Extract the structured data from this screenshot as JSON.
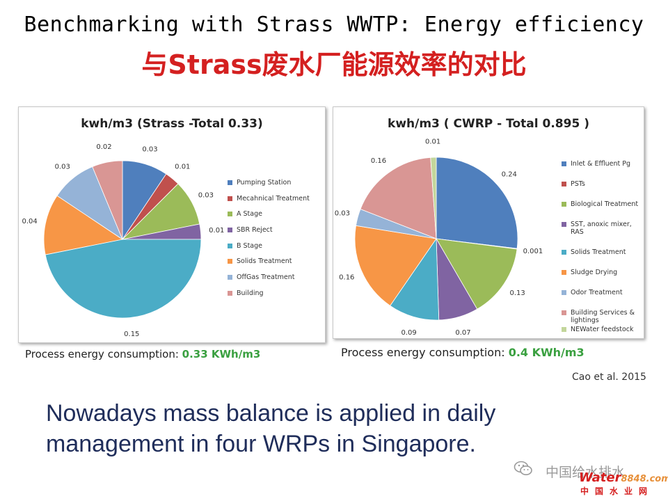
{
  "slide": {
    "title_en": "Benchmarking with Strass WWTP: Energy efficiency",
    "title_cn": "与Strass废水厂能源效率的对比",
    "notes": {
      "left_label": "Process energy consumption: ",
      "left_value": "0.33 KWh/m3",
      "right_label": "Process energy consumption: ",
      "right_value": "0.4 KWh/m3"
    },
    "citation": "Cao et al. 2015",
    "statement_line1": "Nowadays mass balance is applied in daily",
    "statement_line2": "management in four WRPs in Singapore.",
    "watermark": {
      "account": "中国给水排水",
      "logo_text": "Water",
      "logo_num": "8848",
      "logo_domain": ".com",
      "site": "中国水业网"
    },
    "colors": {
      "title_cn": "#d42020",
      "note_value": "#3aa040",
      "statement": "#1f2d5a"
    }
  },
  "chart_data": [
    {
      "type": "pie",
      "title": "kwh/m3 (Strass -Total 0.33)",
      "legend_position": "right",
      "slices": [
        {
          "label": "Pumping Station",
          "value": 0.03,
          "display": "0.03",
          "color": "#4f7fbd"
        },
        {
          "label": "Mecahnical Treatment",
          "value": 0.01,
          "display": "0.01",
          "color": "#c0504d"
        },
        {
          "label": "A Stage",
          "value": 0.03,
          "display": "0.03",
          "color": "#9bbb59"
        },
        {
          "label": "SBR Reject",
          "value": 0.01,
          "display": "0.01",
          "color": "#8064a2"
        },
        {
          "label": "B Stage",
          "value": 0.15,
          "display": "0.15",
          "color": "#4bacc6"
        },
        {
          "label": "Solids Treatment",
          "value": 0.04,
          "display": "0.04",
          "color": "#f79646"
        },
        {
          "label": "OffGas Treatment",
          "value": 0.03,
          "display": "0.03",
          "color": "#95b3d7"
        },
        {
          "label": "Building",
          "value": 0.02,
          "display": "0.02",
          "color": "#d99694"
        }
      ]
    },
    {
      "type": "pie",
      "title": "kwh/m3 ( CWRP - Total 0.895 )",
      "legend_position": "right",
      "slices": [
        {
          "label": "Inlet & Effluent Pg",
          "value": 0.24,
          "display": "0.24",
          "color": "#4f7fbd"
        },
        {
          "label": "PSTs",
          "value": 0.001,
          "display": "0.001",
          "color": "#c0504d"
        },
        {
          "label": "Biological Treatment",
          "value": 0.13,
          "display": "0.13",
          "color": "#9bbb59"
        },
        {
          "label": "SST, anoxic mixer, RAS",
          "value": 0.07,
          "display": "0.07",
          "color": "#8064a2"
        },
        {
          "label": "Solids Treatment",
          "value": 0.09,
          "display": "0.09",
          "color": "#4bacc6"
        },
        {
          "label": "Sludge Drying",
          "value": 0.16,
          "display": "0.16",
          "color": "#f79646"
        },
        {
          "label": "Odor Treatment",
          "value": 0.03,
          "display": "0.03",
          "color": "#95b3d7"
        },
        {
          "label": "Building Services & lightings",
          "value": 0.16,
          "display": "0.16",
          "color": "#d99694"
        },
        {
          "label": "NEWater feedstock",
          "value": 0.01,
          "display": "0.01",
          "color": "#c3d69b"
        }
      ]
    }
  ]
}
